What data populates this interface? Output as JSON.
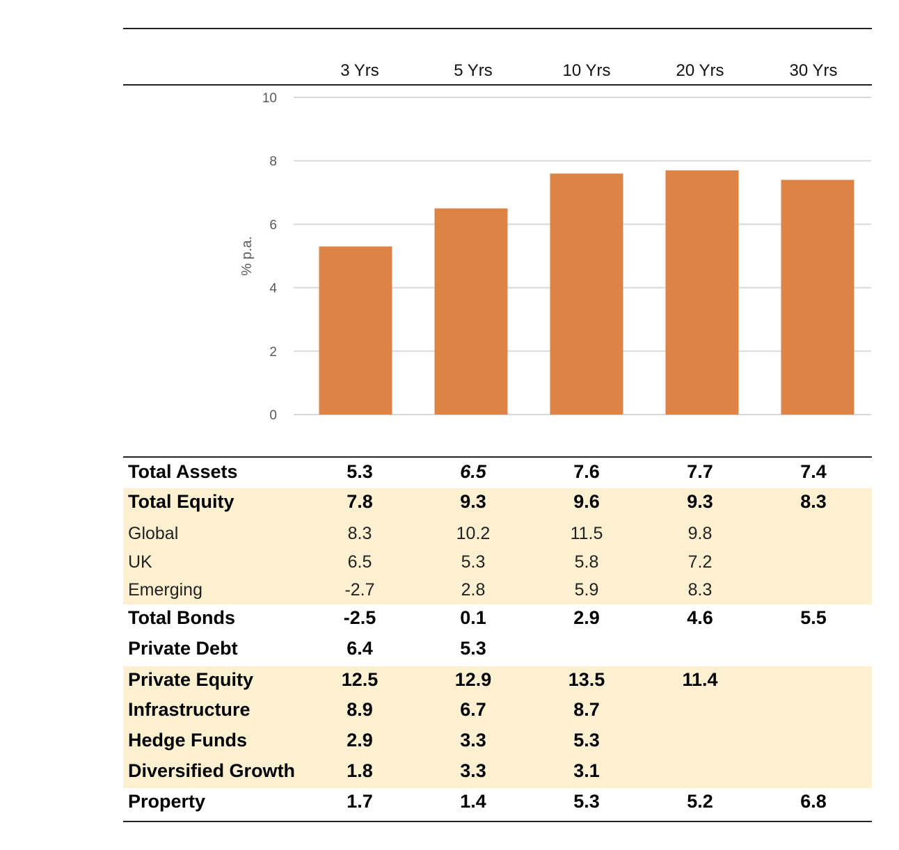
{
  "chart_data": {
    "type": "bar",
    "title": "",
    "categories": [
      "3 Yrs",
      "5 Yrs",
      "10 Yrs",
      "20 Yrs",
      "30 Yrs"
    ],
    "values": [
      5.3,
      6.5,
      7.6,
      7.7,
      7.4
    ],
    "xlabel": "",
    "ylabel": "% p.a.",
    "ylim": [
      0,
      10
    ],
    "yticks": [
      "0",
      "2",
      "4",
      "6",
      "8",
      "10"
    ],
    "grid": true,
    "legend": "none",
    "bar_color": "#de8346"
  },
  "columns": [
    "3 Yrs",
    "5 Yrs",
    "10 Yrs",
    "20 Yrs",
    "30 Yrs"
  ],
  "table": {
    "rows": [
      {
        "label": "Total Assets",
        "values": [
          "5.3",
          "6.5",
          "7.6",
          "7.7",
          "7.4"
        ],
        "style": "bold",
        "shade": false,
        "italic_index": 1
      },
      {
        "label": "Total Equity",
        "values": [
          "7.8",
          "9.3",
          "9.6",
          "9.3",
          "8.3"
        ],
        "style": "bold",
        "shade": true
      },
      {
        "label": "Global",
        "values": [
          "8.3",
          "10.2",
          "11.5",
          "9.8",
          ""
        ],
        "style": "reg",
        "shade": true
      },
      {
        "label": "UK",
        "values": [
          "6.5",
          "5.3",
          "5.8",
          "7.2",
          ""
        ],
        "style": "reg",
        "shade": true
      },
      {
        "label": "Emerging",
        "values": [
          "-2.7",
          "2.8",
          "5.9",
          "8.3",
          ""
        ],
        "style": "reg",
        "shade": true
      },
      {
        "label": "Total Bonds",
        "values": [
          "-2.5",
          "0.1",
          "2.9",
          "4.6",
          "5.5"
        ],
        "style": "bold",
        "shade": false
      },
      {
        "label": "Private Debt",
        "values": [
          "6.4",
          "5.3",
          "",
          "",
          ""
        ],
        "style": "bold",
        "shade": false
      },
      {
        "label": "Private Equity",
        "values": [
          "12.5",
          "12.9",
          "13.5",
          "11.4",
          ""
        ],
        "style": "bold",
        "shade": true
      },
      {
        "label": "Infrastructure",
        "values": [
          "8.9",
          "6.7",
          "8.7",
          "",
          ""
        ],
        "style": "bold",
        "shade": true
      },
      {
        "label": "Hedge Funds",
        "values": [
          "2.9",
          "3.3",
          "5.3",
          "",
          ""
        ],
        "style": "bold",
        "shade": true
      },
      {
        "label": "Diversified Growth",
        "values": [
          "1.8",
          "3.3",
          "3.1",
          "",
          ""
        ],
        "style": "bold",
        "shade": true
      },
      {
        "label": "Property",
        "values": [
          "1.7",
          "1.4",
          "5.3",
          "5.2",
          "6.8"
        ],
        "style": "bold",
        "shade": false
      }
    ]
  }
}
